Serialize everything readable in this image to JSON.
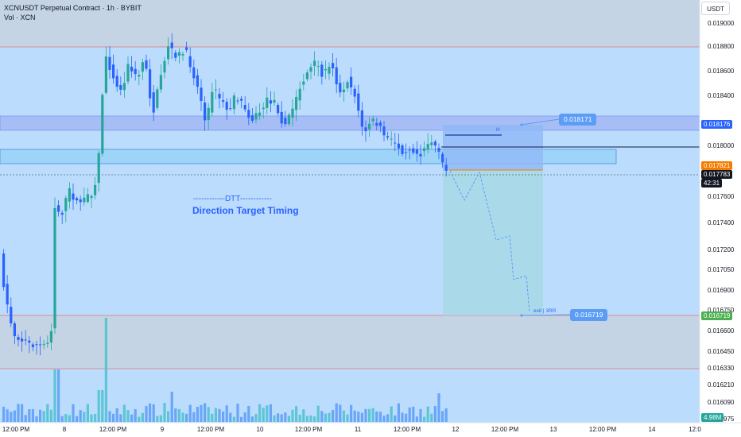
{
  "header": {
    "symbol_line": "XCNUSDT Perpetual Contract · 1h · BYBIT",
    "volume_line": "Vol · XCN"
  },
  "currency_button": "USDT",
  "price_axis": {
    "ticks": [
      "0.019000",
      "0.018800",
      "0.018600",
      "0.018400",
      "0.018000",
      "0.017600",
      "0.017400",
      "0.017200",
      "0.017050",
      "0.016900",
      "0.016750",
      "0.016600",
      "0.016450",
      "0.016330",
      "0.016210",
      "0.016090",
      "0.015975"
    ]
  },
  "time_axis": {
    "ticks": [
      "12:00 PM",
      "8",
      "12:00 PM",
      "9",
      "12:00 PM",
      "10",
      "12:00 PM",
      "11",
      "12:00 PM",
      "12",
      "12:00 PM",
      "13",
      "12:00 PM",
      "14",
      "12:0"
    ]
  },
  "badges": {
    "upper_level": "0.018176",
    "signal_level": "0.017821",
    "last_price": "0.017783",
    "countdown": "42:31",
    "target": "0.016719",
    "volume": "4.98M"
  },
  "callouts": {
    "high_label": "0.018171",
    "target_label": "0.016719"
  },
  "annotations": {
    "dtt_title": "------------DTT------------",
    "dtt_subtitle": "Direction Target Timing",
    "high_marker": "H",
    "exit_label": "exit | 3RR"
  },
  "colors": {
    "background_band": "#bcdcfd",
    "grey_zone": "#c4d4e4",
    "bull": "#26a69a",
    "bear": "#2962ff",
    "volume_bar": "#4bc1cf",
    "target_green": "#4caf50",
    "signal_orange": "#f57c00",
    "last_price": "#131722",
    "accent": "#2962ff"
  },
  "chart_data": {
    "type": "candlestick",
    "symbol": "XCNUSDT Perpetual Contract",
    "interval": "1h",
    "exchange": "BYBIT",
    "ylim": [
      0.01593,
      0.01912
    ],
    "levels": {
      "supply_zone_top": 0.0188,
      "demand_zone_top": 0.01675,
      "demand_zone_bottom": 0.01633,
      "high_marker": 0.01811,
      "signal_entry": 0.017821,
      "last_price": 0.017783,
      "callout_high": 0.018171,
      "target": 0.016719
    }
  }
}
